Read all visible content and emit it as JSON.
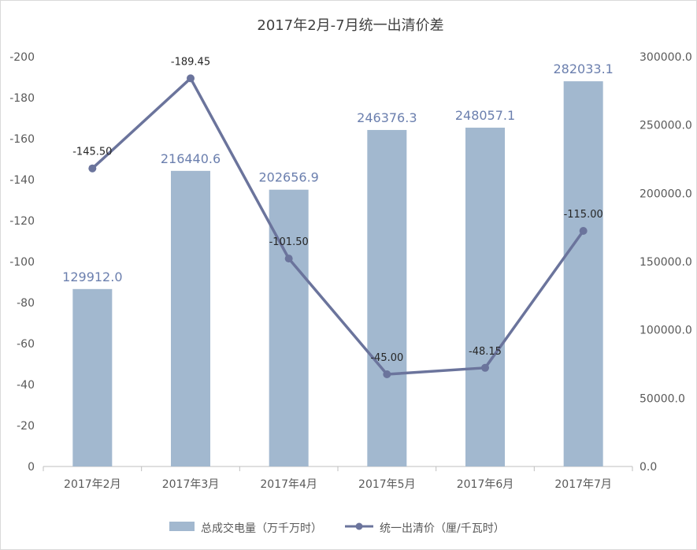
{
  "chart_data": {
    "type": "bar+line",
    "title": "2017年2月-7月统一出清价差",
    "categories": [
      "2017年2月",
      "2017年3月",
      "2017年4月",
      "2017年5月",
      "2017年6月",
      "2017年7月"
    ],
    "series": [
      {
        "name": "总成交电量（万千万时）",
        "type": "bar",
        "axis": "right",
        "values": [
          129912.0,
          216440.6,
          202656.9,
          246376.3,
          248057.1,
          282033.1
        ],
        "labels": [
          "129912.0",
          "216440.6",
          "202656.9",
          "246376.3",
          "248057.1",
          "282033.1"
        ],
        "color": "#a2b8cf",
        "label_color": "#6b7fae"
      },
      {
        "name": "统一出清价（厘/千瓦时）",
        "type": "line",
        "axis": "left",
        "values": [
          -145.5,
          -189.45,
          -101.5,
          -45.0,
          -48.15,
          -115.0
        ],
        "labels": [
          "-145.50",
          "-189.45",
          "-101.50",
          "-45.00",
          "-48.15",
          "-115.00"
        ],
        "color": "#6b749c"
      }
    ],
    "left_axis": {
      "range": [
        0,
        -200
      ],
      "reversed": true,
      "ticks": [
        "0",
        "-20",
        "-40",
        "-60",
        "-80",
        "-100",
        "-120",
        "-140",
        "-160",
        "-180",
        "-200"
      ]
    },
    "right_axis": {
      "range": [
        0,
        300000
      ],
      "ticks": [
        "0.0",
        "50000.0",
        "100000.0",
        "150000.0",
        "200000.0",
        "250000.0",
        "300000.0"
      ]
    },
    "grid": false,
    "legend_position": "bottom"
  }
}
